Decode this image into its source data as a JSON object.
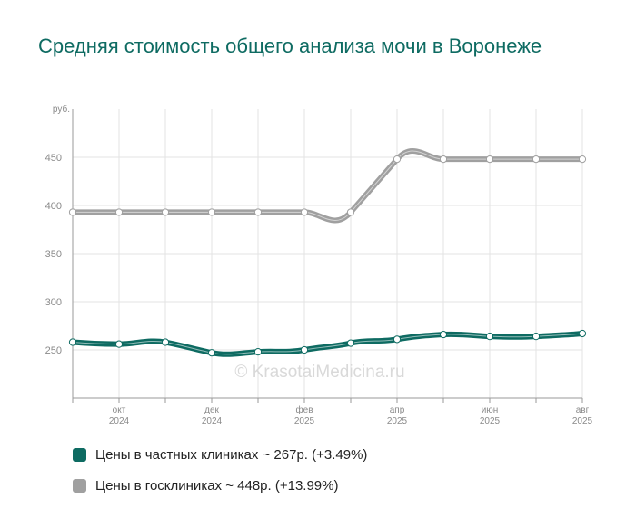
{
  "chart_data": {
    "type": "line",
    "title": "Средняя стоимость общего анализа мочи в Воронеже",
    "ylabel": "руб.",
    "ylim": [
      200,
      500
    ],
    "yticks": [
      250,
      300,
      350,
      400,
      450
    ],
    "x": [
      "2024-09",
      "2024-10",
      "2024-11",
      "2024-12",
      "2025-01",
      "2025-02",
      "2025-03",
      "2025-04",
      "2025-05",
      "2025-06",
      "2025-07",
      "2025-08"
    ],
    "x_tick_labels": [
      {
        "month": "окт",
        "year": "2024"
      },
      {
        "month": "дек",
        "year": "2024"
      },
      {
        "month": "фев",
        "year": "2025"
      },
      {
        "month": "апр",
        "year": "2025"
      },
      {
        "month": "июн",
        "year": "2025"
      },
      {
        "month": "авг",
        "year": "2025"
      }
    ],
    "series": [
      {
        "name": "Цены в частных клиниках",
        "color": "#0e6b62",
        "values": [
          258,
          256,
          258,
          247,
          248,
          250,
          257,
          261,
          266,
          264,
          264,
          267
        ]
      },
      {
        "name": "Цены в госклиниках",
        "color": "#a0a0a0",
        "values": [
          393,
          393,
          393,
          393,
          393,
          393,
          393,
          448,
          448,
          448,
          448,
          448
        ]
      }
    ],
    "grid": true,
    "watermark": "© KrasotaiMedicina.ru"
  },
  "legend": [
    {
      "text": "Цены в частных клиниках ~ 267р. (+3.49%)",
      "color": "#0e6b62"
    },
    {
      "text": "Цены в госклиниках ~ 448р. (+13.99%)",
      "color": "#a0a0a0"
    }
  ]
}
